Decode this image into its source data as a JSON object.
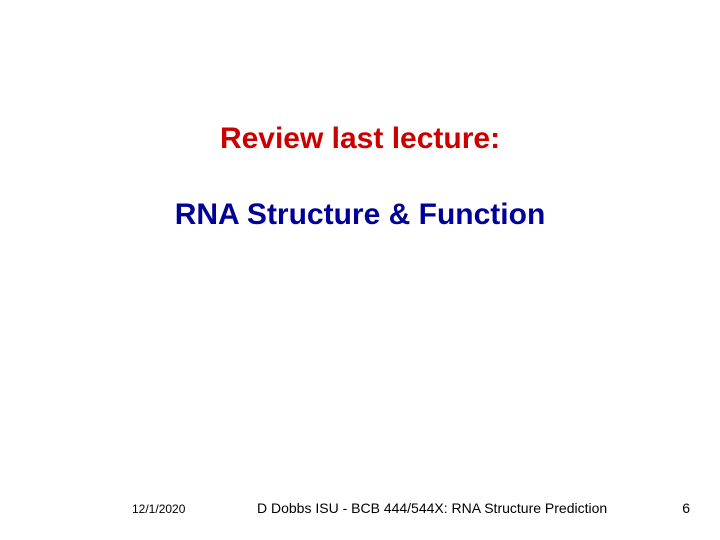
{
  "slide": {
    "title": "Review last lecture:",
    "subtitle": "RNA Structure & Function",
    "title_color": "#cc0000",
    "subtitle_color": "#000099",
    "title_fontsize": 30,
    "subtitle_fontsize": 30,
    "background_color": "#ffffff"
  },
  "footer": {
    "date": "12/1/2020",
    "center": "D Dobbs ISU - BCB 444/544X: RNA Structure Prediction",
    "page": "6",
    "fontsize": 14,
    "date_fontsize": 12,
    "color": "#000000"
  }
}
